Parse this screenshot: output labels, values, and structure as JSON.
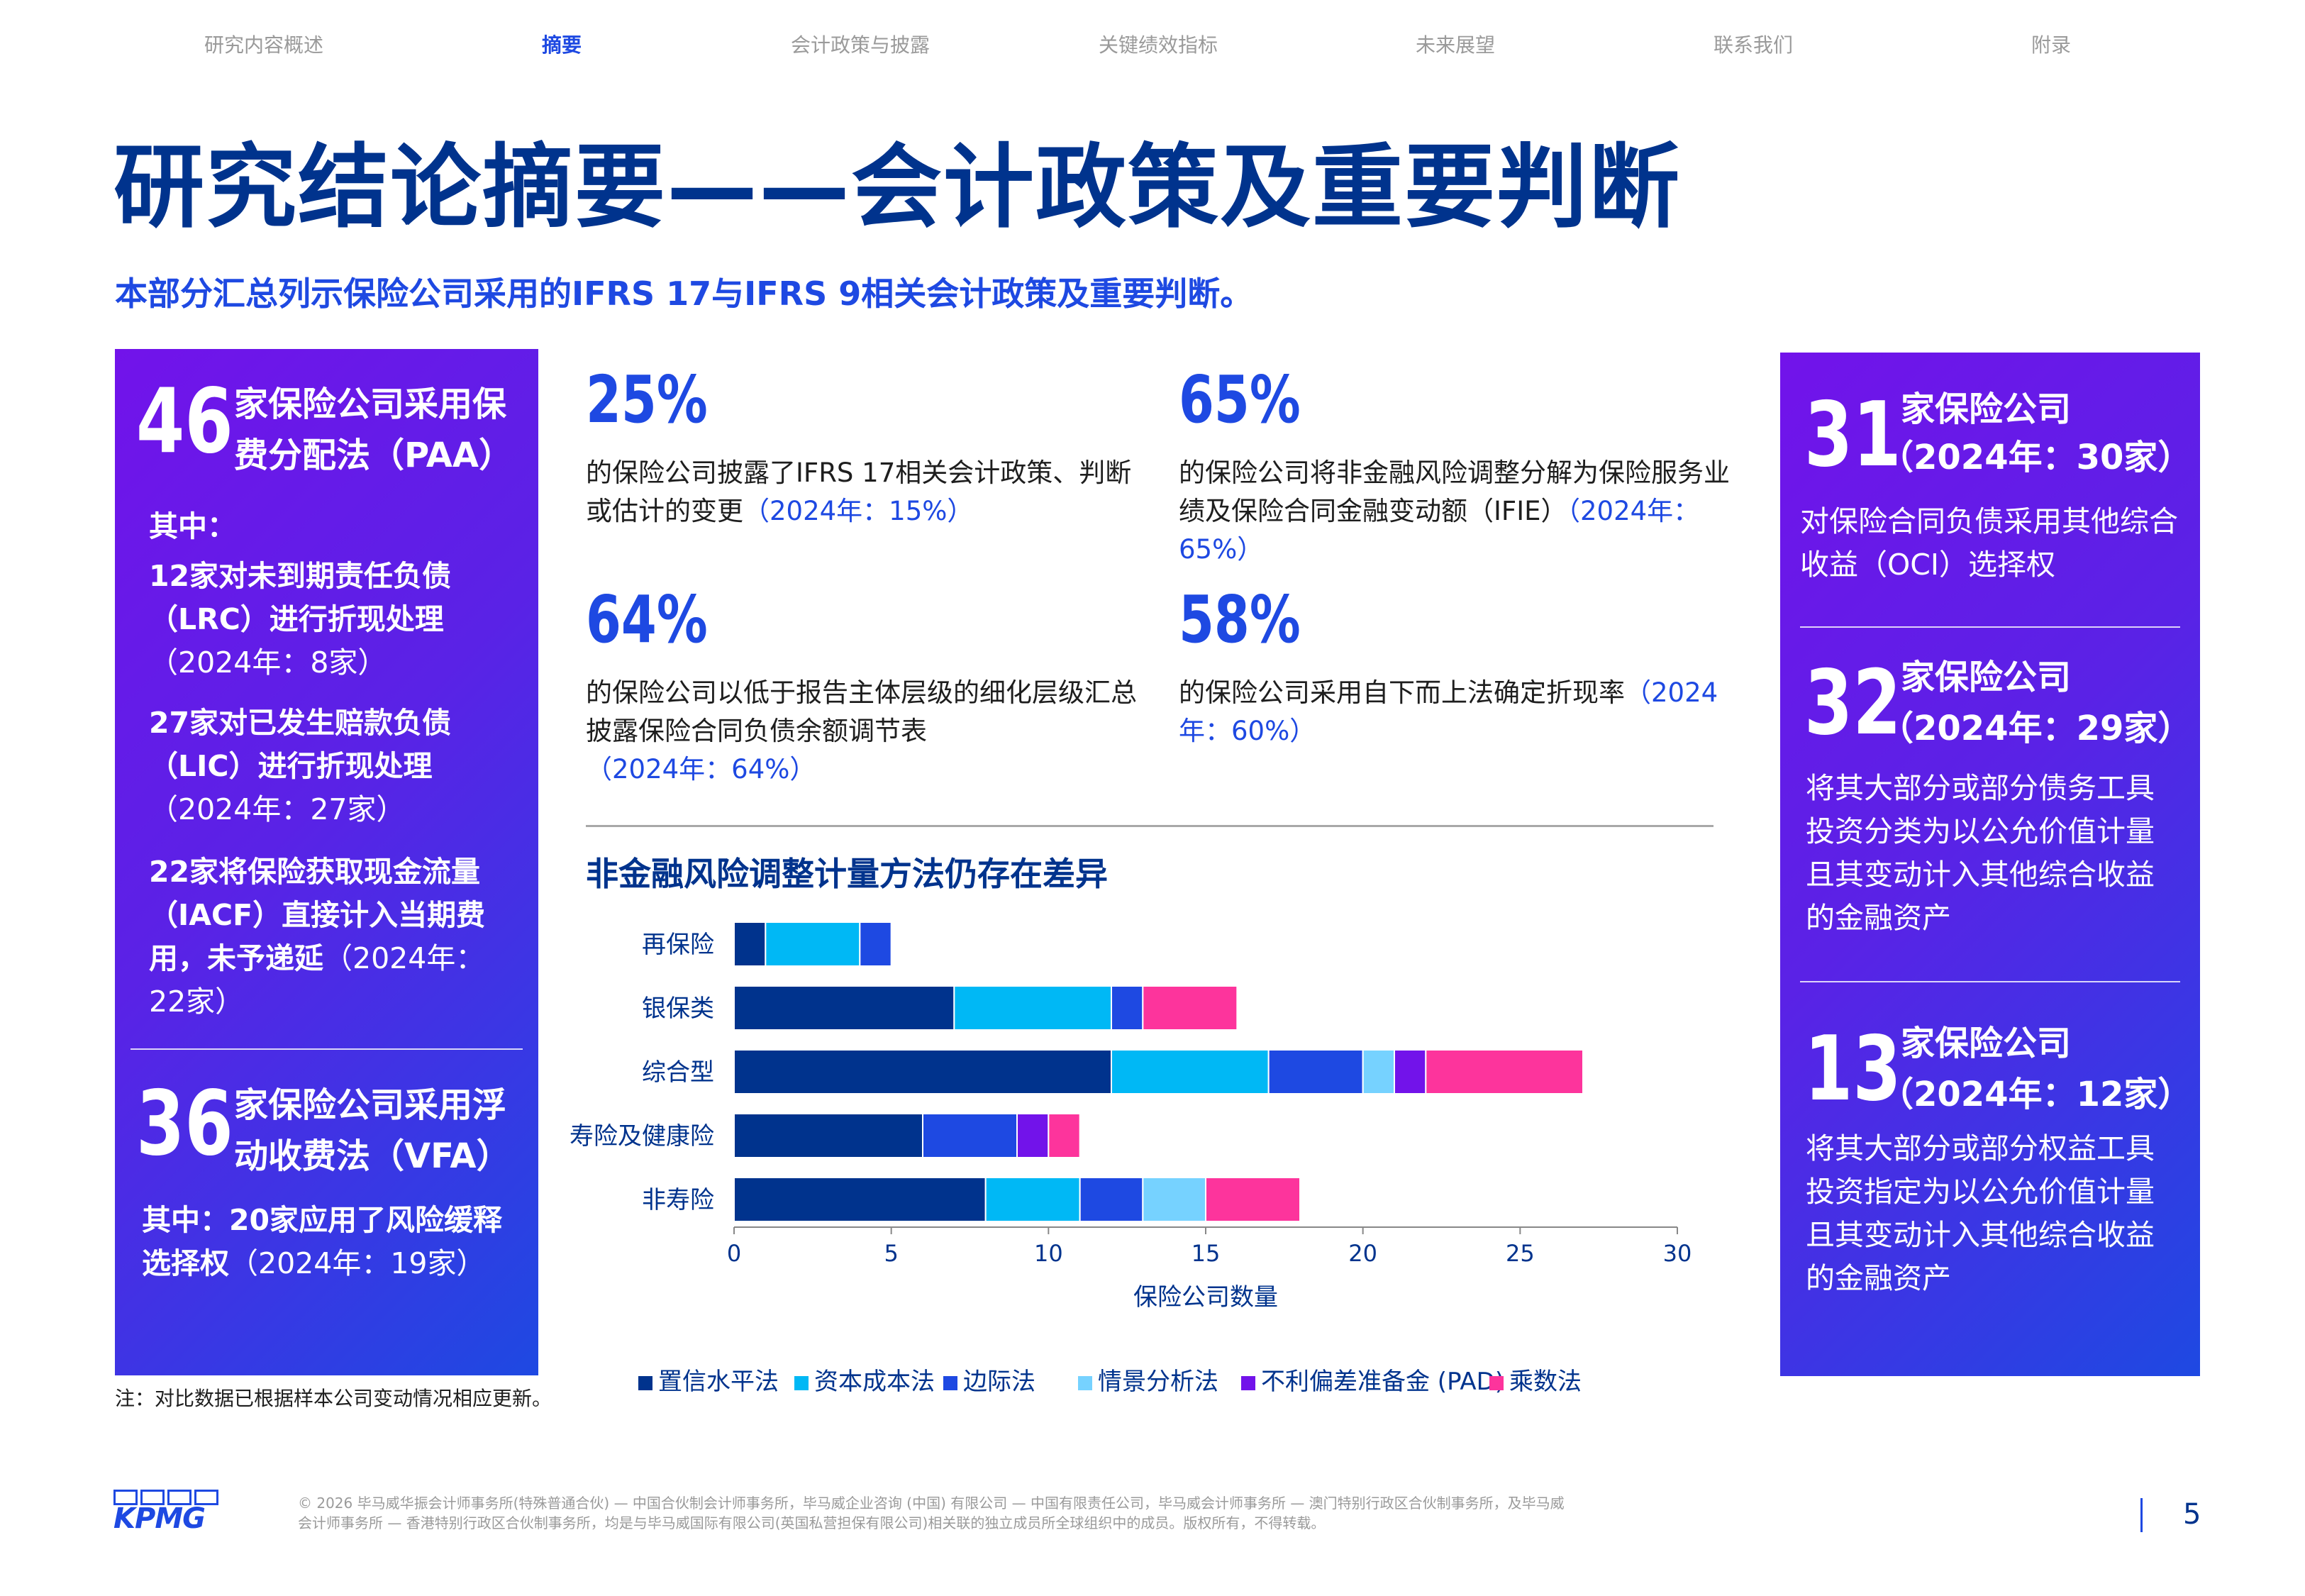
{
  "nav": {
    "items": [
      "研究内容概述",
      "摘要",
      "会计政策与披露",
      "关键绩效指标",
      "未来展望",
      "联系我们",
      "附录"
    ],
    "active_index": 1
  },
  "title": "研究结论摘要——会计政策及重要判断",
  "subtitle": "本部分汇总列示保险公司采用的IFRS 17与IFRS 9相关会计政策及重要判断。",
  "left_panel": {
    "paa": {
      "number": "46",
      "heading": "家保险公司采用保费分配法（PAA）",
      "among": "其中：",
      "items": [
        {
          "text": "12家对未到期责任负债（LRC）进行折现处理",
          "comparison": "（2024年：8家）"
        },
        {
          "text": "27家对已发生赔款负债（LIC）进行折现处理",
          "comparison": "（2024年：27家）"
        },
        {
          "text": "22家将保险获取现金流量（IACF）直接计入当期费用，未予递延",
          "comparison": "（2024年：22家）"
        }
      ]
    },
    "vfa": {
      "number": "36",
      "heading": "家保险公司采用浮动收费法（VFA）",
      "text": "其中：20家应用了风险缓释选择权",
      "comparison": "（2024年：19家）"
    }
  },
  "stats": [
    {
      "value": "25%",
      "text": "的保险公司披露了IFRS 17相关会计政策、判断或估计的变更",
      "comparison": "（2024年：15%）"
    },
    {
      "value": "65%",
      "text": "的保险公司将非金融风险调整分解为保险服务业绩及保险合同金融变动额（IFIE）",
      "comparison": "（2024年：65%）"
    },
    {
      "value": "64%",
      "text": "的保险公司以低于报告主体层级的细化层级汇总披露保险合同负债余额调节表",
      "comparison": "（2024年：64%）"
    },
    {
      "value": "58%",
      "text": "的保险公司采用自下而上法确定折现率",
      "comparison": "（2024年：60%）"
    }
  ],
  "chart_title": "非金融风险调整计量方法仍存在差异",
  "chart_data": {
    "type": "bar",
    "orientation": "horizontal",
    "stacked": true,
    "categories": [
      "再保险",
      "银保类",
      "综合型",
      "寿险及健康险",
      "非寿险"
    ],
    "series": [
      {
        "name": "置信水平法",
        "color": "#00338d",
        "values": [
          1,
          7,
          12,
          6,
          8
        ]
      },
      {
        "name": "资本成本法",
        "color": "#00b8f5",
        "values": [
          3,
          5,
          5,
          0,
          3
        ]
      },
      {
        "name": "边际法",
        "color": "#1e49e2",
        "values": [
          1,
          1,
          3,
          3,
          2
        ]
      },
      {
        "name": "情景分析法",
        "color": "#76d2ff",
        "values": [
          0,
          0,
          1,
          0,
          2
        ]
      },
      {
        "name": "不利偏差准备金 (PAD)",
        "color": "#7213ea",
        "values": [
          0,
          0,
          1,
          1,
          0
        ]
      },
      {
        "name": "乘数法",
        "color": "#fd349c",
        "values": [
          0,
          3,
          5,
          1,
          3
        ]
      }
    ],
    "xlabel": "保险公司数量",
    "xlim": [
      0,
      30
    ],
    "xticks": [
      0,
      5,
      10,
      15,
      20,
      25,
      30
    ],
    "legend_position": "bottom"
  },
  "right_panel": [
    {
      "number": "31",
      "heading": "家保险公司",
      "comparison": "（2024年：30家）",
      "text": "对保险合同负债采用其他综合收益（OCI）选择权"
    },
    {
      "number": "32",
      "heading": "家保险公司",
      "comparison": "（2024年：29家）",
      "text": "将其大部分或部分债务工具投资分类为以公允价值计量且其变动计入其他综合收益的金融资产"
    },
    {
      "number": "13",
      "heading": "家保险公司",
      "comparison": "（2024年：12家）",
      "text": "将其大部分或部分权益工具投资指定为以公允价值计量且其变动计入其他综合收益的金融资产"
    }
  ],
  "note": "注：对比数据已根据样本公司变动情况相应更新。",
  "footer": {
    "logo": "KPMG",
    "copyright": "© 2026 毕马威华振会计师事务所(特殊普通合伙) — 中国合伙制会计师事务所，毕马威企业咨询 (中国) 有限公司 — 中国有限责任公司，毕马威会计师事务所 — 澳门特别行政区合伙制事务所，及毕马威会计师事务所 — 香港特别行政区合伙制事务所，均是与毕马威国际有限公司(英国私营担保有限公司)相关联的独立成员所全球组织中的成员。版权所有，不得转载。",
    "page_number": "5"
  }
}
